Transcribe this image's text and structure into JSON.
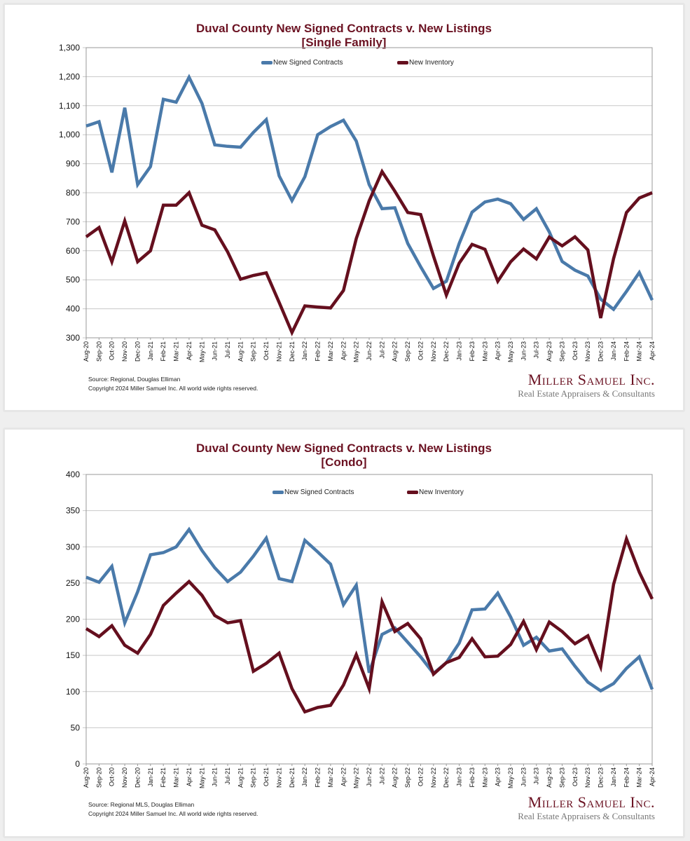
{
  "colors": {
    "contracts": "#4a7aaa",
    "inventory": "#650f1e",
    "grid": "#c8c8c8",
    "title": "#6b1222"
  },
  "logo": {
    "name": "Miller Samuel Inc.",
    "tagline": "Real Estate Appraisers & Consultants"
  },
  "chart_data": [
    {
      "type": "line",
      "title": "Duval County New Signed Contracts v. New Listings",
      "subtitle": "[Single Family]",
      "xlabel": "",
      "ylabel": "",
      "ylim": [
        300,
        1300
      ],
      "yticks": [
        300,
        400,
        500,
        600,
        700,
        800,
        900,
        1000,
        1100,
        1200,
        1300
      ],
      "ytick_labels": [
        "300",
        "400",
        "500",
        "600",
        "700",
        "800",
        "900",
        "1,000",
        "1,100",
        "1,200",
        "1,300"
      ],
      "grid": true,
      "legend": "top-center",
      "x": [
        "Aug-20",
        "Sep-20",
        "Oct-20",
        "Nov-20",
        "Dec-20",
        "Jan-21",
        "Feb-21",
        "Mar-21",
        "Apr-21",
        "May-21",
        "Jun-21",
        "Jul-21",
        "Aug-21",
        "Sep-21",
        "Oct-21",
        "Nov-21",
        "Dec-21",
        "Jan-22",
        "Feb-22",
        "Mar-22",
        "Apr-22",
        "May-22",
        "Jun-22",
        "Jul-22",
        "Aug-22",
        "Sep-22",
        "Oct-22",
        "Nov-22",
        "Dec-22",
        "Jan-23",
        "Feb-23",
        "Mar-23",
        "Apr-23",
        "May-23",
        "Jun-23",
        "Jul-23",
        "Aug-23",
        "Sep-23",
        "Oct-23",
        "Nov-23",
        "Dec-23",
        "Jan-24",
        "Feb-24",
        "Mar-24",
        "Apr-24"
      ],
      "series": [
        {
          "name": "New Signed Contracts",
          "key": "contracts",
          "values": [
            1030,
            1045,
            870,
            1093,
            828,
            890,
            1122,
            1112,
            1198,
            1108,
            965,
            960,
            957,
            1008,
            1052,
            858,
            773,
            855,
            1000,
            1028,
            1050,
            978,
            828,
            745,
            748,
            625,
            545,
            470,
            495,
            625,
            733,
            768,
            778,
            762,
            708,
            745,
            665,
            563,
            533,
            513,
            433,
            398,
            460,
            525,
            430
          ]
        },
        {
          "name": "New Inventory",
          "key": "inventory",
          "values": [
            648,
            680,
            562,
            703,
            562,
            600,
            757,
            757,
            800,
            688,
            672,
            596,
            502,
            515,
            524,
            422,
            318,
            410,
            406,
            403,
            463,
            642,
            772,
            873,
            805,
            732,
            725,
            582,
            447,
            557,
            622,
            605,
            495,
            562,
            606,
            572,
            647,
            617,
            648,
            603,
            368,
            573,
            732,
            782,
            800
          ]
        }
      ],
      "source": "Source: Regional, Douglas Elliman",
      "copyright": "Copyright 2024 Miller Samuel Inc.  All world wide rights reserved."
    },
    {
      "type": "line",
      "title": "Duval County New Signed Contracts v. New Listings",
      "subtitle": "[Condo]",
      "xlabel": "",
      "ylabel": "",
      "ylim": [
        0,
        400
      ],
      "yticks": [
        0,
        50,
        100,
        150,
        200,
        250,
        300,
        350,
        400
      ],
      "ytick_labels": [
        "0",
        "50",
        "100",
        "150",
        "200",
        "250",
        "300",
        "350",
        "400"
      ],
      "grid": true,
      "legend": "top-center",
      "x": [
        "Aug-20",
        "Sep-20",
        "Oct-20",
        "Nov-20",
        "Dec-20",
        "Jan-21",
        "Feb-21",
        "Mar-21",
        "Apr-21",
        "May-21",
        "Jun-21",
        "Jul-21",
        "Aug-21",
        "Sep-21",
        "Oct-21",
        "Nov-21",
        "Dec-21",
        "Jan-22",
        "Feb-22",
        "Mar-22",
        "Apr-22",
        "May-22",
        "Jun-22",
        "Jul-22",
        "Aug-22",
        "Sep-22",
        "Oct-22",
        "Nov-22",
        "Dec-22",
        "Jan-23",
        "Feb-23",
        "Mar-23",
        "Apr-23",
        "May-23",
        "Jun-23",
        "Jul-23",
        "Aug-23",
        "Sep-23",
        "Oct-23",
        "Nov-23",
        "Dec-23",
        "Jan-24",
        "Feb-24",
        "Mar-24",
        "Apr-24"
      ],
      "series": [
        {
          "name": "New Signed Contracts",
          "key": "contracts",
          "values": [
            258,
            251,
            273,
            195,
            238,
            289,
            292,
            300,
            324,
            295,
            271,
            252,
            265,
            287,
            312,
            256,
            252,
            309,
            293,
            276,
            220,
            247,
            126,
            179,
            188,
            168,
            148,
            125,
            140,
            167,
            213,
            214,
            236,
            203,
            164,
            175,
            156,
            159,
            135,
            113,
            101,
            111,
            132,
            148,
            103
          ]
        },
        {
          "name": "New Inventory",
          "key": "inventory",
          "values": [
            187,
            176,
            191,
            164,
            153,
            179,
            219,
            236,
            252,
            233,
            205,
            195,
            198,
            128,
            139,
            153,
            104,
            72,
            78,
            81,
            109,
            151,
            104,
            224,
            183,
            194,
            173,
            124,
            140,
            147,
            173,
            148,
            149,
            165,
            197,
            158,
            196,
            183,
            166,
            177,
            134,
            248,
            311,
            265,
            228
          ]
        }
      ],
      "source": "Source: Regional MLS, Douglas Elliman",
      "copyright": "Copyright 2024 Miller Samuel Inc.  All world wide rights reserved."
    }
  ]
}
